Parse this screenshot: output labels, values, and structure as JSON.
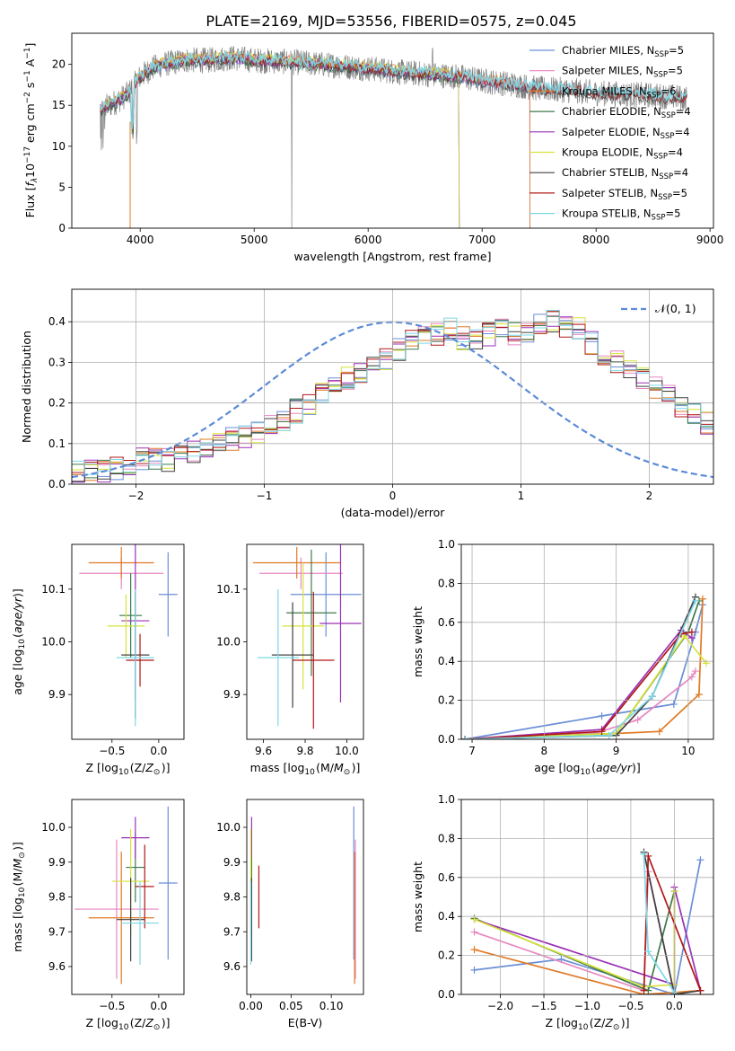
{
  "figure_title": "PLATE=2169, MJD=53556, FIBERID=0575, z=0.045",
  "colors": {
    "Chabrier MILES": "#6a8fd6",
    "Salpeter MILES": "#e887c0",
    "Kroupa MILES": "#e07a26",
    "Chabrier ELODIE": "#3d7a4a",
    "Salpeter ELODIE": "#9b30b5",
    "Kroupa ELODIE": "#d8e23a",
    "Chabrier STELIB": "#404040",
    "Salpeter STELIB": "#b01818",
    "Kroupa STELIB": "#7fd8e6",
    "data": "#808080",
    "normal": "#5b8bd8"
  },
  "chart_data": [
    {
      "id": "spectrum",
      "type": "line",
      "title": "",
      "xlabel": "wavelength [Angstrom, rest frame]",
      "ylabel": "Flux [f_λ 10^-17 erg cm^-2 s^-1 A^-1]",
      "xlim": [
        3400,
        9030
      ],
      "ylim": [
        0,
        23.8
      ],
      "xticks": [
        4000,
        5000,
        6000,
        7000,
        8000,
        9000
      ],
      "yticks": [
        0,
        5,
        10,
        15,
        20
      ],
      "legend_position": "top-right",
      "legend": [
        {
          "label": "Chabrier MILES, N",
          "sub": "SSP",
          "suffix": "=5"
        },
        {
          "label": "Salpeter MILES, N",
          "sub": "SSP",
          "suffix": "=5"
        },
        {
          "label": "Kroupa MILES, N",
          "sub": "SSP",
          "suffix": "=6"
        },
        {
          "label": "Chabrier ELODIE, N",
          "sub": "SSP",
          "suffix": "=4"
        },
        {
          "label": "Salpeter ELODIE, N",
          "sub": "SSP",
          "suffix": "=4"
        },
        {
          "label": "Kroupa ELODIE, N",
          "sub": "SSP",
          "suffix": "=4"
        },
        {
          "label": "Chabrier STELIB, N",
          "sub": "SSP",
          "suffix": "=4"
        },
        {
          "label": "Salpeter STELIB, N",
          "sub": "SSP",
          "suffix": "=5"
        },
        {
          "label": "Kroupa STELIB, N",
          "sub": "SSP",
          "suffix": "=5"
        }
      ],
      "data_continuum": {
        "x": [
          3650,
          3800,
          3900,
          4000,
          4100,
          4200,
          4400,
          4600,
          4800,
          5000,
          5300,
          5600,
          6000,
          6300,
          6500,
          6800,
          7000,
          7300,
          7500,
          7800,
          8000,
          8300,
          8500,
          8700,
          8800
        ],
        "y": [
          14.5,
          15.5,
          16.5,
          18.5,
          19.5,
          20.0,
          20.5,
          20.5,
          20.8,
          20.5,
          20.3,
          20.0,
          19.5,
          19.0,
          18.8,
          18.5,
          18.0,
          17.5,
          17.0,
          16.8,
          16.5,
          16.3,
          16.2,
          16.0,
          15.8
        ]
      },
      "model_range_end": {
        "Chabrier MILES": 7420,
        "Salpeter MILES": 7420,
        "Kroupa MILES": 7420,
        "Chabrier ELODIE": 6800,
        "Salpeter ELODIE": 6800,
        "Kroupa ELODIE": 6800,
        "Chabrier STELIB": 8800,
        "Salpeter STELIB": 8800,
        "Kroupa STELIB": 8800
      }
    },
    {
      "id": "residuals",
      "type": "histogram",
      "xlabel": "(data-model)/error",
      "ylabel": "Normed distribution",
      "xlim": [
        -2.5,
        2.5
      ],
      "ylim": [
        0,
        0.48
      ],
      "xticks": [
        -2,
        -1,
        0,
        1,
        2
      ],
      "yticks": [
        0.0,
        0.1,
        0.2,
        0.3,
        0.4
      ],
      "grid": true,
      "legend_position": "top-right",
      "legend_label": "𝒩(0, 1)",
      "bin_width": 0.1,
      "bin_start": -2.5,
      "sample_heights": [
        0.03,
        0.03,
        0.03,
        0.04,
        0.05,
        0.06,
        0.06,
        0.06,
        0.07,
        0.08,
        0.09,
        0.1,
        0.11,
        0.12,
        0.13,
        0.15,
        0.16,
        0.18,
        0.2,
        0.22,
        0.24,
        0.26,
        0.28,
        0.3,
        0.31,
        0.33,
        0.35,
        0.36,
        0.37,
        0.38,
        0.36,
        0.35,
        0.37,
        0.38,
        0.37,
        0.38,
        0.39,
        0.4,
        0.39,
        0.38,
        0.35,
        0.32,
        0.3,
        0.28,
        0.26,
        0.24,
        0.22,
        0.19,
        0.17,
        0.15,
        0.13,
        0.12,
        0.11,
        0.09,
        0.08,
        0.07,
        0.06,
        0.05,
        0.05,
        0.04,
        0.04,
        0.04,
        0.03,
        0.03,
        0.03,
        0.03,
        0.02,
        0.02,
        0.02,
        0.02
      ]
    },
    {
      "id": "age-vs-Z",
      "type": "scatter",
      "xlabel": "Z [log10(Z/Z☉)]",
      "ylabel": "age  [log10(age/yr)]",
      "xlim": [
        -0.93,
        0.27
      ],
      "ylim": [
        9.815,
        10.185
      ],
      "xticks": [
        -0.5,
        0.0
      ],
      "yticks": [
        9.9,
        10.0,
        10.1
      ],
      "points": [
        {
          "m": "Chabrier MILES",
          "x": 0.1,
          "y": 10.09,
          "xe": 0.1,
          "ye": 0.08
        },
        {
          "m": "Salpeter MILES",
          "x": -0.4,
          "y": 10.13,
          "xe": 0.45,
          "ye": 0.03
        },
        {
          "m": "Kroupa MILES",
          "x": -0.4,
          "y": 10.15,
          "xe": 0.35,
          "ye": 0.03
        },
        {
          "m": "Chabrier ELODIE",
          "x": -0.3,
          "y": 10.05,
          "xe": 0.12,
          "ye": 0.08
        },
        {
          "m": "Salpeter ELODIE",
          "x": -0.25,
          "y": 10.04,
          "xe": 0.15,
          "ye": 0.15
        },
        {
          "m": "Kroupa ELODIE",
          "x": -0.35,
          "y": 10.03,
          "xe": 0.2,
          "ye": 0.06
        },
        {
          "m": "Chabrier STELIB",
          "x": -0.25,
          "y": 9.975,
          "xe": 0.15,
          "ye": 0.12
        },
        {
          "m": "Salpeter STELIB",
          "x": -0.2,
          "y": 9.965,
          "xe": 0.15,
          "ye": 0.05
        },
        {
          "m": "Kroupa STELIB",
          "x": -0.25,
          "y": 9.97,
          "xe": 0.2,
          "ye": 0.13
        }
      ]
    },
    {
      "id": "age-vs-mass",
      "type": "scatter",
      "xlabel": "mass [log10(M/M☉)]",
      "ylabel": "",
      "xlim": [
        9.52,
        10.08
      ],
      "ylim": [
        9.815,
        10.185
      ],
      "xticks": [
        9.6,
        9.8,
        10.0
      ],
      "yticks": [
        9.9,
        10.0,
        10.1
      ],
      "points": [
        {
          "m": "Chabrier MILES",
          "x": 9.9,
          "y": 10.09,
          "xe": 0.17,
          "ye": 0.08
        },
        {
          "m": "Salpeter MILES",
          "x": 9.78,
          "y": 10.13,
          "xe": 0.2,
          "ye": 0.03
        },
        {
          "m": "Kroupa MILES",
          "x": 9.76,
          "y": 10.15,
          "xe": 0.21,
          "ye": 0.03
        },
        {
          "m": "Chabrier ELODIE",
          "x": 9.83,
          "y": 10.055,
          "xe": 0.12,
          "ye": 0.12
        },
        {
          "m": "Salpeter ELODIE",
          "x": 9.97,
          "y": 10.035,
          "xe": 0.1,
          "ye": 0.15
        },
        {
          "m": "Kroupa ELODIE",
          "x": 9.79,
          "y": 10.03,
          "xe": 0.1,
          "ye": 0.12
        },
        {
          "m": "Chabrier STELIB",
          "x": 9.74,
          "y": 9.975,
          "xe": 0.1,
          "ye": 0.1
        },
        {
          "m": "Salpeter STELIB",
          "x": 9.84,
          "y": 9.965,
          "xe": 0.1,
          "ye": 0.13
        },
        {
          "m": "Kroupa STELIB",
          "x": 9.67,
          "y": 9.97,
          "xe": 0.1,
          "ye": 0.13
        }
      ]
    },
    {
      "id": "massweight-vs-age",
      "type": "line",
      "xlabel": "age  [log10(age/yr)]",
      "ylabel": "mass weight",
      "xlim": [
        6.85,
        10.35
      ],
      "ylim": [
        0,
        1
      ],
      "xticks": [
        7,
        8,
        9,
        10
      ],
      "yticks": [
        0.0,
        0.2,
        0.4,
        0.6,
        0.8,
        1.0
      ],
      "grid": true,
      "series": [
        {
          "m": "Chabrier MILES",
          "x": [
            6.9,
            8.8,
            9.8,
            10.1,
            10.2
          ],
          "y": [
            0.0,
            0.12,
            0.18,
            0.55,
            0.69
          ]
        },
        {
          "m": "Salpeter MILES",
          "x": [
            6.9,
            8.7,
            9.3,
            10.05,
            10.1
          ],
          "y": [
            0.0,
            0.03,
            0.1,
            0.32,
            0.35
          ]
        },
        {
          "m": "Kroupa MILES",
          "x": [
            6.9,
            9.0,
            9.6,
            10.15,
            10.2
          ],
          "y": [
            0.0,
            0.03,
            0.04,
            0.23,
            0.72
          ]
        },
        {
          "m": "Chabrier ELODIE",
          "x": [
            6.9,
            9.0,
            10.0,
            10.15
          ],
          "y": [
            0.0,
            0.03,
            0.55,
            0.71
          ]
        },
        {
          "m": "Salpeter ELODIE",
          "x": [
            6.9,
            8.8,
            9.9,
            10.05
          ],
          "y": [
            0.0,
            0.05,
            0.56,
            0.52
          ]
        },
        {
          "m": "Kroupa ELODIE",
          "x": [
            6.9,
            9.0,
            9.95,
            10.25
          ],
          "y": [
            0.0,
            0.03,
            0.53,
            0.39
          ]
        },
        {
          "m": "Chabrier STELIB",
          "x": [
            6.9,
            9.0,
            9.5,
            10.1
          ],
          "y": [
            0.0,
            0.02,
            0.22,
            0.73
          ]
        },
        {
          "m": "Salpeter STELIB",
          "x": [
            6.9,
            8.8,
            9.9,
            10.05
          ],
          "y": [
            0.0,
            0.04,
            0.54,
            0.55
          ]
        },
        {
          "m": "Kroupa STELIB",
          "x": [
            6.9,
            8.9,
            9.5,
            10.1
          ],
          "y": [
            0.0,
            0.02,
            0.22,
            0.71
          ]
        }
      ]
    },
    {
      "id": "mass-vs-Z",
      "type": "scatter",
      "xlabel": "Z [log10(Z/Z☉)]",
      "ylabel": "mass [log10(M/M☉)]",
      "xlim": [
        -0.93,
        0.27
      ],
      "ylim": [
        9.52,
        10.08
      ],
      "xticks": [
        -0.5,
        0.0
      ],
      "yticks": [
        9.6,
        9.7,
        9.8,
        9.9,
        10.0
      ],
      "points": [
        {
          "m": "Chabrier MILES",
          "x": 0.1,
          "y": 9.84,
          "xe": 0.1,
          "ye": 0.22
        },
        {
          "m": "Salpeter MILES",
          "x": -0.45,
          "y": 9.765,
          "xe": 0.45,
          "ye": 0.2
        },
        {
          "m": "Kroupa MILES",
          "x": -0.4,
          "y": 9.74,
          "xe": 0.35,
          "ye": 0.19
        },
        {
          "m": "Chabrier ELODIE",
          "x": -0.25,
          "y": 9.885,
          "xe": 0.1,
          "ye": 0.1
        },
        {
          "m": "Salpeter ELODIE",
          "x": -0.25,
          "y": 9.97,
          "xe": 0.15,
          "ye": 0.06
        },
        {
          "m": "Kroupa ELODIE",
          "x": -0.3,
          "y": 9.845,
          "xe": 0.2,
          "ye": 0.15
        },
        {
          "m": "Chabrier STELIB",
          "x": -0.3,
          "y": 9.735,
          "xe": 0.15,
          "ye": 0.12
        },
        {
          "m": "Salpeter STELIB",
          "x": -0.15,
          "y": 9.83,
          "xe": 0.1,
          "ye": 0.12
        },
        {
          "m": "Kroupa STELIB",
          "x": -0.2,
          "y": 9.725,
          "xe": 0.2,
          "ye": 0.12
        }
      ]
    },
    {
      "id": "mass-vs-ebv",
      "type": "scatter",
      "xlabel": "E(B-V)",
      "ylabel": "",
      "xlim": [
        -0.005,
        0.14
      ],
      "ylim": [
        9.52,
        10.08
      ],
      "xticks": [
        0.0,
        0.05,
        0.1
      ],
      "yticks": [
        9.6,
        9.7,
        9.8,
        9.9,
        10.0
      ],
      "points": [
        {
          "m": "Chabrier MILES",
          "x": 0.128,
          "y": 9.84,
          "xe": 0.0,
          "ye": 0.22
        },
        {
          "m": "Salpeter MILES",
          "x": 0.13,
          "y": 9.765,
          "xe": 0.0,
          "ye": 0.2
        },
        {
          "m": "Kroupa MILES",
          "x": 0.129,
          "y": 9.74,
          "xe": 0.0,
          "ye": 0.19
        },
        {
          "m": "Chabrier ELODIE",
          "x": 0.001,
          "y": 9.885,
          "xe": 0.0,
          "ye": 0.1
        },
        {
          "m": "Salpeter ELODIE",
          "x": 0.001,
          "y": 9.97,
          "xe": 0.0,
          "ye": 0.06
        },
        {
          "m": "Kroupa ELODIE",
          "x": 0.0,
          "y": 9.845,
          "xe": 0.0,
          "ye": 0.15
        },
        {
          "m": "Chabrier STELIB",
          "x": 0.001,
          "y": 9.735,
          "xe": 0.0,
          "ye": 0.12
        },
        {
          "m": "Salpeter STELIB",
          "x": 0.01,
          "y": 9.8,
          "xe": 0.0,
          "ye": 0.09
        },
        {
          "m": "Kroupa STELIB",
          "x": 0.0,
          "y": 9.725,
          "xe": 0.0,
          "ye": 0.12
        }
      ]
    },
    {
      "id": "massweight-vs-Z",
      "type": "line",
      "xlabel": "Z [log10(Z/Z☉)]",
      "ylabel": "mass weight",
      "xlim": [
        -2.45,
        0.45
      ],
      "ylim": [
        0,
        1
      ],
      "xticks": [
        -2.0,
        -1.5,
        -1.0,
        -0.5,
        0.0
      ],
      "yticks": [
        0.0,
        0.2,
        0.4,
        0.6,
        0.8,
        1.0
      ],
      "grid": true,
      "series": [
        {
          "m": "Chabrier MILES",
          "x": [
            -2.3,
            -1.3,
            0.0,
            0.3
          ],
          "y": [
            0.125,
            0.18,
            0.0,
            0.69
          ]
        },
        {
          "m": "Salpeter MILES",
          "x": [
            -2.3,
            -0.35,
            -0.3,
            0.0
          ],
          "y": [
            0.32,
            0.02,
            0.63,
            0.0
          ]
        },
        {
          "m": "Kroupa MILES",
          "x": [
            -2.3,
            -0.35,
            0.0,
            0.3
          ],
          "y": [
            0.23,
            0.0,
            0.01,
            0.02
          ]
        },
        {
          "m": "Chabrier ELODIE",
          "x": [
            -2.3,
            -0.3,
            0.0
          ],
          "y": [
            0.39,
            0.02,
            0.53
          ]
        },
        {
          "m": "Salpeter ELODIE",
          "x": [
            -2.3,
            0.0,
            0.0,
            0.3
          ],
          "y": [
            0.385,
            0.05,
            0.55,
            0.02
          ]
        },
        {
          "m": "Kroupa ELODIE",
          "x": [
            -2.3,
            -0.35,
            0.0,
            0.0
          ],
          "y": [
            0.385,
            0.04,
            0.05,
            0.53
          ]
        },
        {
          "m": "Chabrier STELIB",
          "x": [
            -0.35,
            0.0,
            0.3
          ],
          "y": [
            0.73,
            0.0,
            0.02
          ]
        },
        {
          "m": "Salpeter STELIB",
          "x": [
            -0.35,
            -0.3,
            0.3
          ],
          "y": [
            0.02,
            0.71,
            0.02
          ]
        },
        {
          "m": "Kroupa STELIB",
          "x": [
            -0.35,
            -0.3,
            0.0
          ],
          "y": [
            0.72,
            0.22,
            0.01
          ]
        }
      ]
    }
  ]
}
